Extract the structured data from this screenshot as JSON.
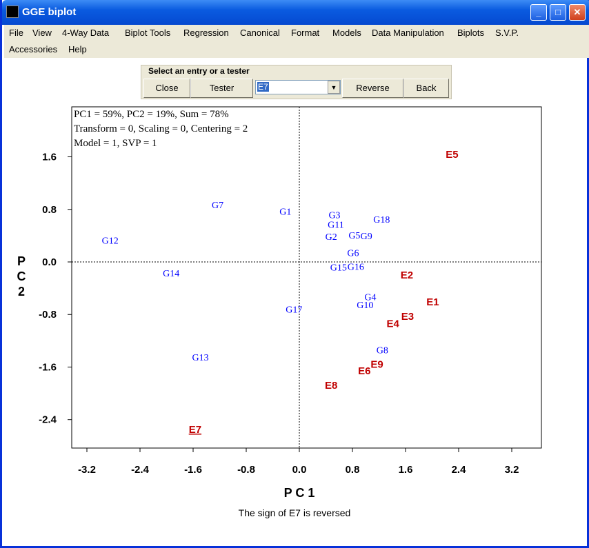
{
  "window": {
    "title": "GGE biplot"
  },
  "menu": [
    "File",
    "View",
    "4-Way Data",
    "Biplot Tools",
    "Regression",
    "Canonical",
    "Format",
    "Models",
    "Data Manipulation",
    "Biplots",
    "S.V.P.",
    "Accessories",
    "Help"
  ],
  "toolbar": {
    "group_label": "Select an entry or a tester",
    "close": "Close",
    "tester": "Tester",
    "selected": "E7",
    "reverse": "Reverse",
    "back": "Back"
  },
  "info": [
    "PC1 = 59%, PC2 = 19%, Sum = 78%",
    "Transform = 0, Scaling = 0, Centering = 2",
    "Model = 1, SVP = 1"
  ],
  "caption": "The sign of E7 is reversed",
  "chart_data": {
    "type": "scatter",
    "xlabel": "P C 1",
    "ylabel": "P C 2",
    "xlim": [
      -3.45,
      3.65
    ],
    "ylim": [
      -2.8,
      2.35
    ],
    "xticks": [
      -3.2,
      -2.4,
      -1.6,
      -0.8,
      0.0,
      0.8,
      1.6,
      2.4,
      3.2
    ],
    "yticks": [
      1.6,
      0.8,
      0.0,
      -0.8,
      -1.6,
      -2.4
    ],
    "colors": {
      "genotype": "#0000ff",
      "environment": "#c00000"
    },
    "genotypes": [
      {
        "label": "G1",
        "x": -0.21,
        "y": 0.77
      },
      {
        "label": "G2",
        "x": 0.48,
        "y": 0.39
      },
      {
        "label": "G3",
        "x": 0.53,
        "y": 0.72
      },
      {
        "label": "G4",
        "x": 1.07,
        "y": -0.53
      },
      {
        "label": "G5",
        "x": 0.83,
        "y": 0.41
      },
      {
        "label": "G6",
        "x": 0.81,
        "y": 0.14
      },
      {
        "label": "G7",
        "x": -1.23,
        "y": 0.87
      },
      {
        "label": "G8",
        "x": 1.25,
        "y": -1.34
      },
      {
        "label": "G9",
        "x": 1.01,
        "y": 0.4
      },
      {
        "label": "G10",
        "x": 0.99,
        "y": -0.65
      },
      {
        "label": "G11",
        "x": 0.55,
        "y": 0.57
      },
      {
        "label": "G12",
        "x": -2.85,
        "y": 0.33
      },
      {
        "label": "G13",
        "x": -1.49,
        "y": -1.45
      },
      {
        "label": "G14",
        "x": -1.93,
        "y": -0.17
      },
      {
        "label": "G15",
        "x": 0.59,
        "y": -0.08
      },
      {
        "label": "G16",
        "x": 0.85,
        "y": -0.07
      },
      {
        "label": "G17",
        "x": -0.08,
        "y": -0.72
      },
      {
        "label": "G18",
        "x": 1.24,
        "y": 0.65
      }
    ],
    "environments": [
      {
        "label": "E1",
        "x": 2.01,
        "y": -0.6
      },
      {
        "label": "E2",
        "x": 1.62,
        "y": -0.19
      },
      {
        "label": "E3",
        "x": 1.63,
        "y": -0.82
      },
      {
        "label": "E4",
        "x": 1.41,
        "y": -0.93
      },
      {
        "label": "E5",
        "x": 2.3,
        "y": 1.65
      },
      {
        "label": "E6",
        "x": 0.98,
        "y": -1.65
      },
      {
        "label": "E7",
        "x": -1.57,
        "y": -2.54,
        "underlined": true
      },
      {
        "label": "E8",
        "x": 0.48,
        "y": -1.87
      },
      {
        "label": "E9",
        "x": 1.17,
        "y": -1.55
      }
    ]
  }
}
